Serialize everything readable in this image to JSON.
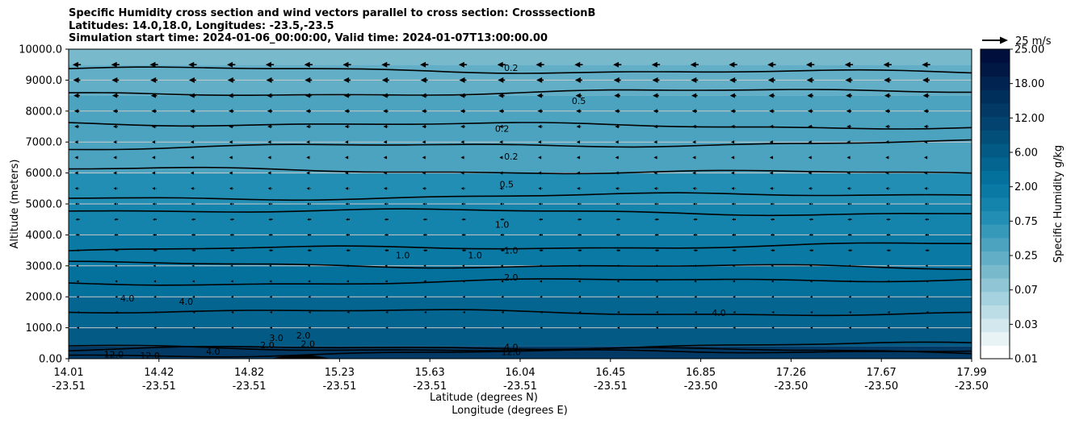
{
  "title_lines": [
    "Specific Humidity cross section and wind vectors parallel to cross section: CrosssectionB",
    "Latitudes: 14.0,18.0, Longitudes: -23.5,-23.5",
    "Simulation start time: 2024-01-06_00:00:00, Valid time: 2024-01-07T13:00:00.00"
  ],
  "chart_data": {
    "type": "heatmap",
    "subtype": "filled contour cross section with quiver wind vectors",
    "title": "Specific Humidity cross section and wind vectors parallel to cross section: CrosssectionB",
    "ylabel": "Altitude (meters)",
    "xlabel_line1": "Latitude (degrees N)",
    "xlabel_line2": "Longitude (degrees E)",
    "ylim": [
      0,
      10000
    ],
    "yticks": [
      "0.00",
      "1000.0",
      "2000.0",
      "3000.0",
      "4000.0",
      "5000.0",
      "6000.0",
      "7000.0",
      "8000.0",
      "9000.0",
      "10000.0"
    ],
    "ytick_values": [
      0,
      1000,
      2000,
      3000,
      4000,
      5000,
      6000,
      7000,
      8000,
      9000,
      10000
    ],
    "xlim": [
      0,
      1
    ],
    "xticks": [
      {
        "pos": 0.0,
        "lat": "14.01",
        "lon": "-23.51"
      },
      {
        "pos": 0.1,
        "lat": "14.42",
        "lon": "-23.51"
      },
      {
        "pos": 0.2,
        "lat": "14.82",
        "lon": "-23.51"
      },
      {
        "pos": 0.3,
        "lat": "15.23",
        "lon": "-23.51"
      },
      {
        "pos": 0.4,
        "lat": "15.63",
        "lon": "-23.51"
      },
      {
        "pos": 0.5,
        "lat": "16.04",
        "lon": "-23.51"
      },
      {
        "pos": 0.6,
        "lat": "16.45",
        "lon": "-23.51"
      },
      {
        "pos": 0.7,
        "lat": "16.85",
        "lon": "-23.50"
      },
      {
        "pos": 0.8,
        "lat": "17.26",
        "lon": "-23.50"
      },
      {
        "pos": 0.9,
        "lat": "17.67",
        "lon": "-23.50"
      },
      {
        "pos": 1.0,
        "lat": "17.99",
        "lon": "-23.50"
      }
    ],
    "grid": "horizontal",
    "colorbar": {
      "label": "Specific Humidity g/kg",
      "levels": [
        "0.01",
        "0.03",
        "0.07",
        "0.25",
        "0.75",
        "2.00",
        "6.00",
        "12.00",
        "18.00",
        "25.00"
      ],
      "colors": [
        "#ffffff",
        "#e8f3f6",
        "#d2e8ee",
        "#bcdde6",
        "#a6d1de",
        "#8fc5d5",
        "#78b9cc",
        "#62aec6",
        "#4ca3c0",
        "#3699ba",
        "#228eb3",
        "#1584ac",
        "#0a7aa4",
        "#04709c",
        "#036590",
        "#035a85",
        "#024f7a",
        "#02446f",
        "#023a65",
        "#012f5b",
        "#012350",
        "#011845",
        "#010f3c"
      ]
    },
    "humidity_bands": [
      {
        "from": 9500,
        "to": 10000,
        "value": 0.15
      },
      {
        "from": 8500,
        "to": 9500,
        "value": 0.2
      },
      {
        "from": 7000,
        "to": 8500,
        "value": 0.3
      },
      {
        "from": 6000,
        "to": 7000,
        "value": 0.4
      },
      {
        "from": 5000,
        "to": 6000,
        "value": 0.7
      },
      {
        "from": 4000,
        "to": 5000,
        "value": 1.2
      },
      {
        "from": 3000,
        "to": 4000,
        "value": 1.8
      },
      {
        "from": 2000,
        "to": 3000,
        "value": 3.0
      },
      {
        "from": 1000,
        "to": 2000,
        "value": 4.5
      },
      {
        "from": 400,
        "to": 1000,
        "value": 6.5
      },
      {
        "from": 0,
        "to": 400,
        "value": 13.0
      }
    ],
    "contour_labels": [
      {
        "text": "0.2",
        "x": 0.49,
        "alt": 9400
      },
      {
        "text": "0.5",
        "x": 0.565,
        "alt": 8330
      },
      {
        "text": "0.2",
        "x": 0.48,
        "alt": 7440
      },
      {
        "text": "0.2",
        "x": 0.49,
        "alt": 6530
      },
      {
        "text": "0.5",
        "x": 0.485,
        "alt": 5640
      },
      {
        "text": "1.0",
        "x": 0.48,
        "alt": 4330
      },
      {
        "text": "1.0",
        "x": 0.37,
        "alt": 3350
      },
      {
        "text": "1.0",
        "x": 0.45,
        "alt": 3350
      },
      {
        "text": "1.0",
        "x": 0.49,
        "alt": 3500
      },
      {
        "text": "2.0",
        "x": 0.49,
        "alt": 2630
      },
      {
        "text": "4.0",
        "x": 0.065,
        "alt": 1950
      },
      {
        "text": "4.0",
        "x": 0.13,
        "alt": 1850
      },
      {
        "text": "4.0",
        "x": 0.72,
        "alt": 1480
      },
      {
        "text": "3.0",
        "x": 0.23,
        "alt": 680
      },
      {
        "text": "2.0",
        "x": 0.26,
        "alt": 760
      },
      {
        "text": "2.0",
        "x": 0.265,
        "alt": 480
      },
      {
        "text": "2.0",
        "x": 0.22,
        "alt": 440
      },
      {
        "text": "4.0",
        "x": 0.16,
        "alt": 230
      },
      {
        "text": "4.0",
        "x": 0.49,
        "alt": 380
      },
      {
        "text": "12.0",
        "x": 0.49,
        "alt": 220
      },
      {
        "text": "12.0",
        "x": 0.05,
        "alt": 140
      },
      {
        "text": "12.0",
        "x": 0.09,
        "alt": 100
      }
    ],
    "wind": {
      "reference_label": "25 m/s",
      "reference_speed": 25,
      "direction": "toward decreasing latitude (left)",
      "speed_by_altitude": [
        {
          "alt": 9500,
          "speed": 8
        },
        {
          "alt": 9000,
          "speed": 7
        },
        {
          "alt": 8500,
          "speed": 6
        },
        {
          "alt": 8000,
          "speed": 5
        },
        {
          "alt": 7500,
          "speed": 4.5
        },
        {
          "alt": 7000,
          "speed": 4
        },
        {
          "alt": 6500,
          "speed": 4
        },
        {
          "alt": 6000,
          "speed": 4
        },
        {
          "alt": 5500,
          "speed": 3.5
        },
        {
          "alt": 5000,
          "speed": 3
        },
        {
          "alt": 4500,
          "speed": 2.5
        },
        {
          "alt": 4000,
          "speed": 2.5
        },
        {
          "alt": 3500,
          "speed": 2
        },
        {
          "alt": 3000,
          "speed": 1.5
        },
        {
          "alt": 2500,
          "speed": 1
        },
        {
          "alt": 2000,
          "speed": 0.5
        },
        {
          "alt": 1500,
          "speed": 0.2
        },
        {
          "alt": 1000,
          "speed": 0.2
        }
      ]
    }
  }
}
